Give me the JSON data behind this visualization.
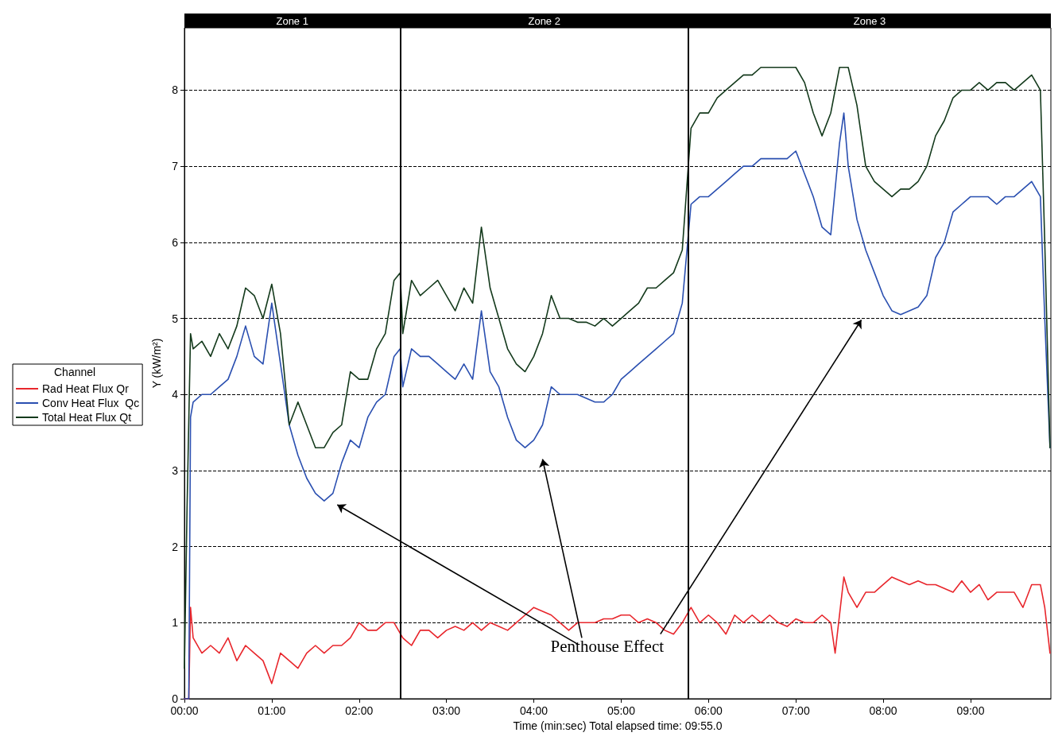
{
  "chart_data": {
    "type": "line",
    "xlabel": "Time (min:sec) Total elapsed time: 09:55.0",
    "ylabel": "Y (kW/m²)",
    "legend_title": "Channel",
    "legend": "left",
    "grid": "y",
    "marker": "none",
    "line_style": "solid",
    "xlim": [
      0,
      9.92
    ],
    "ylim": [
      0,
      8.82
    ],
    "xticks": [
      {
        "value": 0,
        "label": "00:00"
      },
      {
        "value": 1,
        "label": "01:00"
      },
      {
        "value": 2,
        "label": "02:00"
      },
      {
        "value": 3,
        "label": "03:00"
      },
      {
        "value": 4,
        "label": "04:00"
      },
      {
        "value": 5,
        "label": "05:00"
      },
      {
        "value": 6,
        "label": "06:00"
      },
      {
        "value": 7,
        "label": "07:00"
      },
      {
        "value": 8,
        "label": "08:00"
      },
      {
        "value": 9,
        "label": "09:00"
      }
    ],
    "yticks": [
      0,
      1,
      2,
      3,
      4,
      5,
      6,
      7,
      8
    ],
    "ref_lines": [
      {
        "axis": "x",
        "value": 2.47,
        "label": null,
        "color": "#000000"
      },
      {
        "axis": "x",
        "value": 5.77,
        "label": null,
        "color": "#000000"
      }
    ],
    "annotations": [
      "Zone 1",
      "Zone 2",
      "Zone 3",
      "Penthouse Effect"
    ],
    "series": [
      {
        "name": "Rad Heat Flux Qr",
        "color": "#e8262c",
        "x": [
          0,
          0.05,
          0.07,
          0.1,
          0.2,
          0.3,
          0.4,
          0.5,
          0.6,
          0.7,
          0.8,
          0.9,
          1.0,
          1.1,
          1.2,
          1.3,
          1.4,
          1.5,
          1.6,
          1.7,
          1.8,
          1.9,
          2.0,
          2.1,
          2.2,
          2.3,
          2.4,
          2.5,
          2.6,
          2.7,
          2.8,
          2.9,
          3.0,
          3.1,
          3.2,
          3.3,
          3.4,
          3.5,
          3.6,
          3.7,
          3.8,
          3.9,
          4.0,
          4.1,
          4.2,
          4.3,
          4.4,
          4.5,
          4.6,
          4.7,
          4.8,
          4.9,
          5.0,
          5.1,
          5.2,
          5.3,
          5.4,
          5.5,
          5.6,
          5.7,
          5.8,
          5.9,
          6.0,
          6.1,
          6.2,
          6.3,
          6.4,
          6.5,
          6.6,
          6.7,
          6.8,
          6.9,
          7.0,
          7.1,
          7.2,
          7.3,
          7.4,
          7.45,
          7.55,
          7.6,
          7.7,
          7.8,
          7.9,
          8.0,
          8.1,
          8.2,
          8.3,
          8.4,
          8.5,
          8.6,
          8.7,
          8.8,
          8.9,
          9.0,
          9.1,
          9.2,
          9.3,
          9.4,
          9.5,
          9.6,
          9.7,
          9.8,
          9.85,
          9.91
        ],
        "values": [
          0,
          0,
          1.2,
          0.8,
          0.6,
          0.7,
          0.6,
          0.8,
          0.5,
          0.7,
          0.6,
          0.5,
          0.2,
          0.6,
          0.5,
          0.4,
          0.6,
          0.7,
          0.6,
          0.7,
          0.7,
          0.8,
          1.0,
          0.9,
          0.9,
          1.0,
          1.0,
          0.8,
          0.7,
          0.9,
          0.9,
          0.8,
          0.9,
          0.95,
          0.9,
          1.0,
          0.9,
          1.0,
          0.95,
          0.9,
          1.0,
          1.1,
          1.2,
          1.15,
          1.1,
          1.0,
          0.9,
          1.0,
          1.0,
          1.0,
          1.05,
          1.05,
          1.1,
          1.1,
          1.0,
          1.05,
          1.0,
          0.9,
          0.85,
          1.0,
          1.2,
          1.0,
          1.1,
          1.0,
          0.85,
          1.1,
          1.0,
          1.1,
          1.0,
          1.1,
          1.0,
          0.95,
          1.05,
          1.0,
          1.0,
          1.1,
          1.0,
          0.6,
          1.6,
          1.4,
          1.2,
          1.4,
          1.4,
          1.5,
          1.6,
          1.55,
          1.5,
          1.55,
          1.5,
          1.5,
          1.45,
          1.4,
          1.55,
          1.4,
          1.5,
          1.3,
          1.4,
          1.4,
          1.4,
          1.2,
          1.5,
          1.5,
          1.2,
          0.6
        ]
      },
      {
        "name": "Conv Heat Flux  Qc",
        "color": "#2a4fb0",
        "x": [
          0,
          0.05,
          0.07,
          0.1,
          0.2,
          0.3,
          0.4,
          0.5,
          0.6,
          0.7,
          0.8,
          0.9,
          1.0,
          1.1,
          1.2,
          1.3,
          1.4,
          1.5,
          1.6,
          1.7,
          1.8,
          1.9,
          2.0,
          2.1,
          2.2,
          2.3,
          2.4,
          2.47,
          2.5,
          2.6,
          2.7,
          2.8,
          2.9,
          3.0,
          3.1,
          3.2,
          3.3,
          3.4,
          3.5,
          3.6,
          3.7,
          3.8,
          3.9,
          4.0,
          4.1,
          4.2,
          4.3,
          4.4,
          4.5,
          4.6,
          4.7,
          4.8,
          4.9,
          5.0,
          5.1,
          5.2,
          5.3,
          5.4,
          5.5,
          5.6,
          5.7,
          5.8,
          5.9,
          6.0,
          6.1,
          6.2,
          6.3,
          6.4,
          6.5,
          6.6,
          6.7,
          6.8,
          6.9,
          7.0,
          7.1,
          7.2,
          7.3,
          7.4,
          7.5,
          7.55,
          7.6,
          7.7,
          7.8,
          7.9,
          8.0,
          8.1,
          8.2,
          8.3,
          8.4,
          8.5,
          8.6,
          8.7,
          8.8,
          8.9,
          9.0,
          9.1,
          9.2,
          9.3,
          9.4,
          9.5,
          9.6,
          9.7,
          9.8,
          9.85,
          9.91
        ],
        "values": [
          0,
          0,
          3.7,
          3.9,
          4.0,
          4.0,
          4.1,
          4.2,
          4.5,
          4.9,
          4.5,
          4.4,
          5.2,
          4.4,
          3.6,
          3.2,
          2.9,
          2.7,
          2.6,
          2.7,
          3.1,
          3.4,
          3.3,
          3.7,
          3.9,
          4.0,
          4.5,
          4.6,
          4.1,
          4.6,
          4.5,
          4.5,
          4.4,
          4.3,
          4.2,
          4.4,
          4.2,
          5.1,
          4.3,
          4.1,
          3.7,
          3.4,
          3.3,
          3.4,
          3.6,
          4.1,
          4.0,
          4.0,
          4.0,
          3.95,
          3.9,
          3.9,
          4.0,
          4.2,
          4.3,
          4.4,
          4.5,
          4.6,
          4.7,
          4.8,
          5.2,
          6.5,
          6.6,
          6.6,
          6.7,
          6.8,
          6.9,
          7.0,
          7.0,
          7.1,
          7.1,
          7.1,
          7.1,
          7.2,
          6.9,
          6.6,
          6.2,
          6.1,
          7.3,
          7.7,
          7.0,
          6.3,
          5.9,
          5.6,
          5.3,
          5.1,
          5.05,
          5.1,
          5.15,
          5.3,
          5.8,
          6.0,
          6.4,
          6.5,
          6.6,
          6.6,
          6.6,
          6.5,
          6.6,
          6.6,
          6.7,
          6.8,
          6.6,
          5.0,
          3.3
        ]
      },
      {
        "name": "Total Heat Flux Qt",
        "color": "#143a1c",
        "x": [
          0,
          0.03,
          0.07,
          0.1,
          0.2,
          0.3,
          0.4,
          0.5,
          0.6,
          0.7,
          0.8,
          0.9,
          1.0,
          1.1,
          1.2,
          1.3,
          1.4,
          1.5,
          1.6,
          1.7,
          1.8,
          1.9,
          2.0,
          2.1,
          2.2,
          2.3,
          2.4,
          2.47,
          2.5,
          2.6,
          2.7,
          2.8,
          2.9,
          3.0,
          3.1,
          3.2,
          3.3,
          3.4,
          3.5,
          3.6,
          3.7,
          3.8,
          3.9,
          4.0,
          4.1,
          4.2,
          4.3,
          4.4,
          4.5,
          4.6,
          4.7,
          4.8,
          4.9,
          5.0,
          5.1,
          5.2,
          5.3,
          5.4,
          5.5,
          5.6,
          5.7,
          5.8,
          5.9,
          6.0,
          6.1,
          6.2,
          6.3,
          6.4,
          6.5,
          6.6,
          6.7,
          6.8,
          6.9,
          7.0,
          7.1,
          7.2,
          7.3,
          7.4,
          7.5,
          7.6,
          7.7,
          7.8,
          7.9,
          8.0,
          8.1,
          8.2,
          8.3,
          8.4,
          8.5,
          8.6,
          8.7,
          8.8,
          8.9,
          9.0,
          9.1,
          9.2,
          9.3,
          9.4,
          9.5,
          9.6,
          9.7,
          9.8,
          9.85,
          9.91
        ],
        "values": [
          0.4,
          2.5,
          4.8,
          4.6,
          4.7,
          4.5,
          4.8,
          4.6,
          4.9,
          5.4,
          5.3,
          5.0,
          5.45,
          4.8,
          3.6,
          3.9,
          3.6,
          3.3,
          3.3,
          3.5,
          3.6,
          4.3,
          4.2,
          4.2,
          4.6,
          4.8,
          5.5,
          5.6,
          4.8,
          5.5,
          5.3,
          5.4,
          5.5,
          5.3,
          5.1,
          5.4,
          5.2,
          6.2,
          5.4,
          5.0,
          4.6,
          4.4,
          4.3,
          4.5,
          4.8,
          5.3,
          5.0,
          5.0,
          4.95,
          4.95,
          4.9,
          5.0,
          4.9,
          5.0,
          5.1,
          5.2,
          5.4,
          5.4,
          5.5,
          5.6,
          5.9,
          7.5,
          7.7,
          7.7,
          7.9,
          8.0,
          8.1,
          8.2,
          8.2,
          8.3,
          8.3,
          8.3,
          8.3,
          8.3,
          8.1,
          7.7,
          7.4,
          7.7,
          8.3,
          8.3,
          7.8,
          7.0,
          6.8,
          6.7,
          6.6,
          6.7,
          6.7,
          6.8,
          7.0,
          7.4,
          7.6,
          7.9,
          8.0,
          8.0,
          8.1,
          8.0,
          8.1,
          8.1,
          8.0,
          8.1,
          8.2,
          8.0,
          6.0,
          3.3
        ]
      }
    ]
  }
}
